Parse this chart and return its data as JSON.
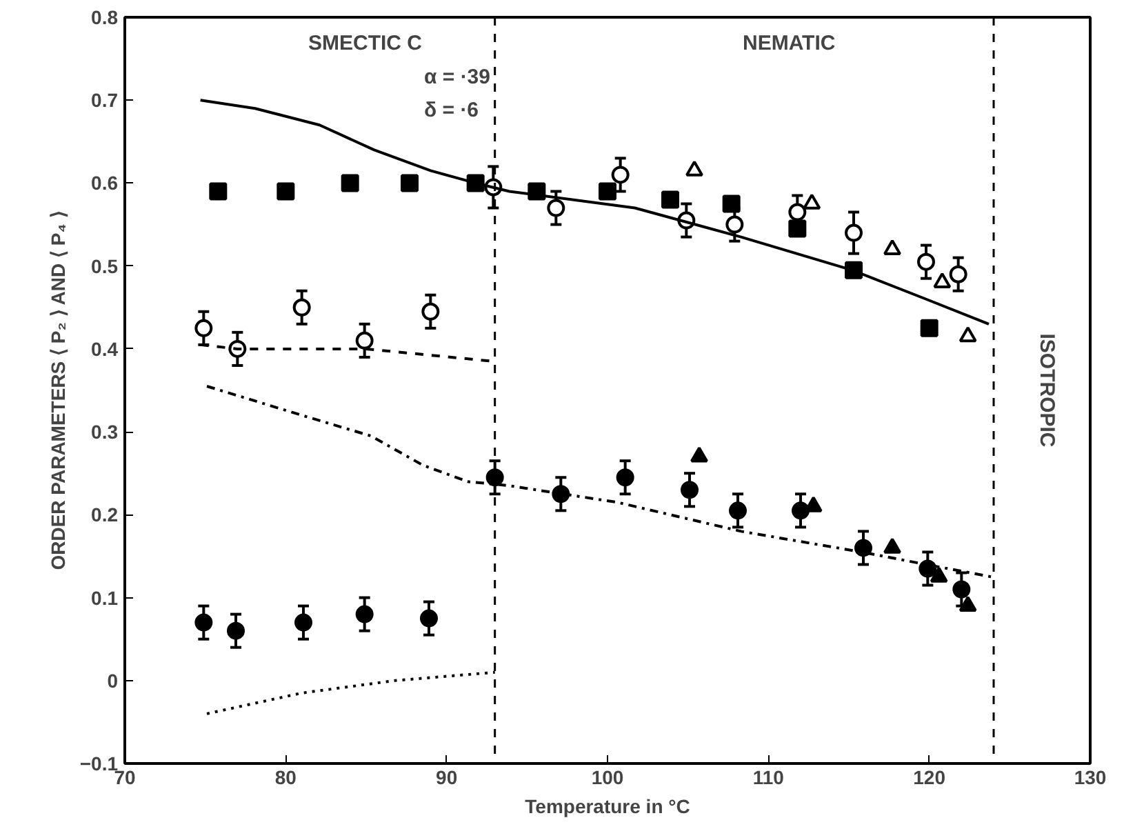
{
  "chart_data": {
    "type": "scatter",
    "xlabel": "Temperature in °C",
    "ylabel": "ORDER PARAMETERS ⟨ P₂ ⟩ AND ⟨ P₄ ⟩",
    "xlim": [
      70,
      130
    ],
    "ylim": [
      -0.1,
      0.8
    ],
    "xticks": [
      70,
      80,
      90,
      100,
      110,
      120,
      130
    ],
    "yticks": [
      -0.1,
      0,
      0.1,
      0.2,
      0.3,
      0.4,
      0.5,
      0.6,
      0.7,
      0.8
    ],
    "grid": false,
    "annotations": [
      "SMECTIC C",
      "NEMATIC",
      "ISOTROPIC",
      "α = ·39",
      "δ = ·6"
    ],
    "ref_lines": [
      {
        "axis": "x",
        "value": 93,
        "line_style": "dashed"
      },
      {
        "axis": "x",
        "value": 124,
        "line_style": "dashed"
      }
    ],
    "series": [
      {
        "marker": "square",
        "color": "#000000",
        "x": [
          75.8,
          80,
          84,
          87.7,
          91.8,
          95.6,
          100,
          103.9,
          107.7,
          111.8,
          115.3,
          120
        ],
        "values": [
          0.59,
          0.59,
          0.6,
          0.6,
          0.6,
          0.59,
          0.59,
          0.58,
          0.575,
          0.545,
          0.495,
          0.425
        ]
      },
      {
        "marker": "circle_open",
        "color": "#000000",
        "x": [
          74.9,
          77,
          81,
          84.9,
          89,
          92.9,
          96.8,
          100.8,
          104.9,
          107.9,
          111.8,
          115.3,
          119.8,
          121.8
        ],
        "values": [
          0.425,
          0.4,
          0.45,
          0.41,
          0.445,
          0.595,
          0.57,
          0.61,
          0.555,
          0.55,
          0.565,
          0.54,
          0.505,
          0.49
        ],
        "errors": [
          0.02,
          0.02,
          0.02,
          0.02,
          0.02,
          0.025,
          0.02,
          0.02,
          0.02,
          0.02,
          0.02,
          0.025,
          0.02,
          0.02
        ]
      },
      {
        "marker": "triangle_open",
        "color": "#000000",
        "x": [
          105.4,
          112.7,
          117.7,
          120.8,
          122.4
        ],
        "values": [
          0.615,
          0.575,
          0.52,
          0.48,
          0.415
        ]
      },
      {
        "marker": "circle",
        "color": "#000000",
        "x": [
          74.9,
          76.9,
          81.1,
          84.9,
          88.9,
          93,
          97.1,
          101.1,
          105.1,
          108.1,
          112,
          115.9,
          119.9,
          122
        ],
        "values": [
          0.07,
          0.06,
          0.07,
          0.08,
          0.075,
          0.245,
          0.225,
          0.245,
          0.23,
          0.205,
          0.205,
          0.16,
          0.135,
          0.11
        ],
        "errors": [
          0.02,
          0.02,
          0.02,
          0.02,
          0.02,
          0.02,
          0.02,
          0.02,
          0.02,
          0.02,
          0.02,
          0.02,
          0.02,
          0.02
        ]
      },
      {
        "marker": "triangle",
        "color": "#000000",
        "x": [
          105.7,
          112.8,
          117.7,
          120.6,
          122.4
        ],
        "values": [
          0.27,
          0.21,
          0.16,
          0.125,
          0.09
        ]
      },
      {
        "type": "line",
        "line_style": "solid",
        "color": "#000000",
        "x": [
          74.7,
          78.1,
          82.1,
          85.5,
          89,
          91.8,
          93.9,
          101.7,
          108.3,
          115.2,
          119.8,
          123.7
        ],
        "values": [
          0.7,
          0.69,
          0.67,
          0.64,
          0.615,
          0.6,
          0.59,
          0.57,
          0.535,
          0.495,
          0.46,
          0.43
        ]
      },
      {
        "type": "line",
        "line_style": "dashed",
        "color": "#000000",
        "x": [
          74.7,
          77,
          85,
          92.9
        ],
        "values": [
          0.405,
          0.4,
          0.4,
          0.385
        ]
      },
      {
        "type": "line",
        "line_style": "dashdot",
        "color": "#000000",
        "x": [
          75.1,
          81,
          85.3,
          88.5,
          91.3,
          93.9,
          100.6,
          108.3,
          115.8,
          119.8,
          123.9
        ],
        "values": [
          0.355,
          0.32,
          0.295,
          0.26,
          0.24,
          0.235,
          0.215,
          0.18,
          0.155,
          0.14,
          0.125
        ]
      },
      {
        "type": "line",
        "line_style": "dotted",
        "color": "#000000",
        "x": [
          75.1,
          81,
          86.8,
          93
        ],
        "values": [
          -0.04,
          -0.015,
          0,
          0.01
        ]
      }
    ]
  }
}
